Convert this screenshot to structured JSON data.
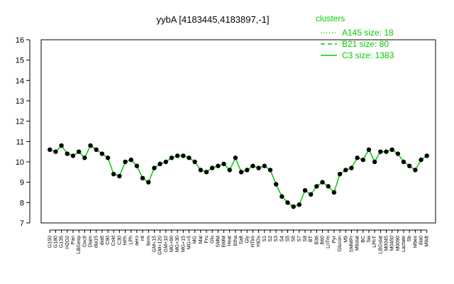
{
  "chart_data": {
    "type": "line",
    "title": "yybA [4183445,4183897,-1]",
    "xlabel": "",
    "ylabel": "",
    "ylim": [
      7,
      16
    ],
    "yticks": [
      7,
      8,
      9,
      10,
      11,
      12,
      13,
      14,
      15,
      16
    ],
    "grid": false,
    "legend": {
      "title": "clusters",
      "placement": "top-right",
      "entries": [
        {
          "label": "A145 size: 18",
          "style": "dotted"
        },
        {
          "label": "B21 size: 80",
          "style": "dashed"
        },
        {
          "label": "C3 size: 1383",
          "style": "solid"
        }
      ]
    },
    "colors": {
      "series": "#00cc00",
      "points": "#000000",
      "axis": "#000000"
    },
    "categories": [
      "G150",
      "G180",
      "G135",
      "H2O2",
      "Pan",
      "LBGexp",
      "Oxctl",
      "Diam",
      "dia15",
      "dia5",
      "C90",
      "Cold",
      "C30",
      "HPh",
      "LPh",
      "aero",
      "nit",
      "ferm",
      "GM+15",
      "GM+120",
      "GM+10",
      "MG+60",
      "MG+30",
      "MG+15",
      "MG+5",
      "MG",
      "Mal",
      "Fru",
      "Glu",
      "SMM",
      "BMM",
      "Heat",
      "Etha",
      "Salt",
      "Gly",
      "HTim",
      "HiOs",
      "S1",
      "S2",
      "S3",
      "S4",
      "S5",
      "S6",
      "S7",
      "S8",
      "BT",
      "B36",
      "B60",
      "LoTm",
      "Pyr",
      "Glucon",
      "M9",
      "SMMPr",
      "M9stat",
      "BC",
      "Sw",
      "LPhT",
      "LBGstat",
      "M0045",
      "M0450",
      "M0090",
      "Lactate",
      "Sb",
      "M9ex",
      "dia0",
      "M9dt"
    ],
    "x_tick_labels": [
      "G150",
      "G180",
      "G135",
      "H2O2",
      "Pan",
      "LBGexp",
      "Oxctl",
      "Diam",
      "dia15",
      "dia5",
      "C90",
      "Cold",
      "C30",
      "HPh",
      "LPh",
      "aero",
      "nit",
      "ferm",
      "GM+15",
      "GM+120",
      "GM+10",
      "MG+60",
      "MG+30",
      "MG+15",
      "MG+5",
      "MG",
      "Mal",
      "Fru",
      "Glu",
      "SMM",
      "BMM",
      "Heat",
      "Etha",
      "Salt",
      "Gly",
      "HTim",
      "HiOs",
      "S1",
      "S2",
      "S3",
      "S4",
      "S5",
      "S6",
      "S7",
      "S8",
      "BT",
      "B36",
      "B60",
      "LoTm",
      "Pyr",
      "Glucon",
      "M9",
      "SMMPr",
      "M9stat",
      "BC",
      "Sw",
      "LPhT",
      "LBGstat",
      "M0045",
      "M0450",
      "M0090",
      "Lactate",
      "Sb",
      "M9ex",
      "dia0",
      "M9dt"
    ],
    "x": [
      1,
      2,
      3,
      4,
      5,
      6,
      7,
      8,
      9,
      10,
      11,
      12,
      13,
      14,
      15,
      16,
      17,
      18,
      19,
      20,
      21,
      22,
      23,
      24,
      25,
      26,
      27,
      28,
      29,
      30,
      31,
      32,
      33,
      34,
      35,
      36,
      37,
      38,
      39,
      40,
      41,
      42,
      43,
      44,
      45,
      46,
      47,
      48,
      49,
      50,
      51,
      52,
      53,
      54,
      55,
      56,
      57,
      58,
      59,
      60,
      61,
      62,
      63,
      64,
      65,
      66
    ],
    "series": [
      {
        "values": [
          10.6,
          10.5,
          10.8,
          10.4,
          10.3,
          10.5,
          10.2,
          10.8,
          10.6,
          10.4,
          10.2,
          9.4,
          9.3,
          10.0,
          10.1,
          9.8,
          9.2,
          9.0,
          9.7,
          9.9,
          10.0,
          10.2,
          10.3,
          10.3,
          10.2,
          10.0,
          9.6,
          9.5,
          9.7,
          9.8,
          9.9,
          9.6,
          10.2,
          9.5,
          9.6,
          9.8,
          9.7,
          9.8,
          9.6,
          8.9,
          8.3,
          8.0,
          7.8,
          7.9,
          8.6,
          8.4,
          8.8,
          9.0,
          8.8,
          8.5,
          9.4,
          9.6,
          9.7,
          10.2,
          10.1,
          10.6,
          10.0,
          10.5,
          10.5,
          10.6,
          10.4,
          10.0,
          9.8,
          9.6,
          10.1,
          10.3
        ]
      }
    ]
  }
}
